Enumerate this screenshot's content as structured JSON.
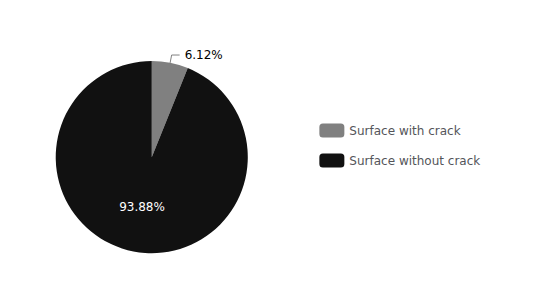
{
  "chart_data": {
    "type": "pie",
    "categories": [
      "Surface with crack",
      "Surface without crack"
    ],
    "values": [
      6.12,
      93.88
    ],
    "value_labels": [
      "6.12%",
      "93.88%"
    ],
    "colors": [
      "#808080",
      "#111111"
    ],
    "data_labels": true,
    "legend": "right"
  }
}
